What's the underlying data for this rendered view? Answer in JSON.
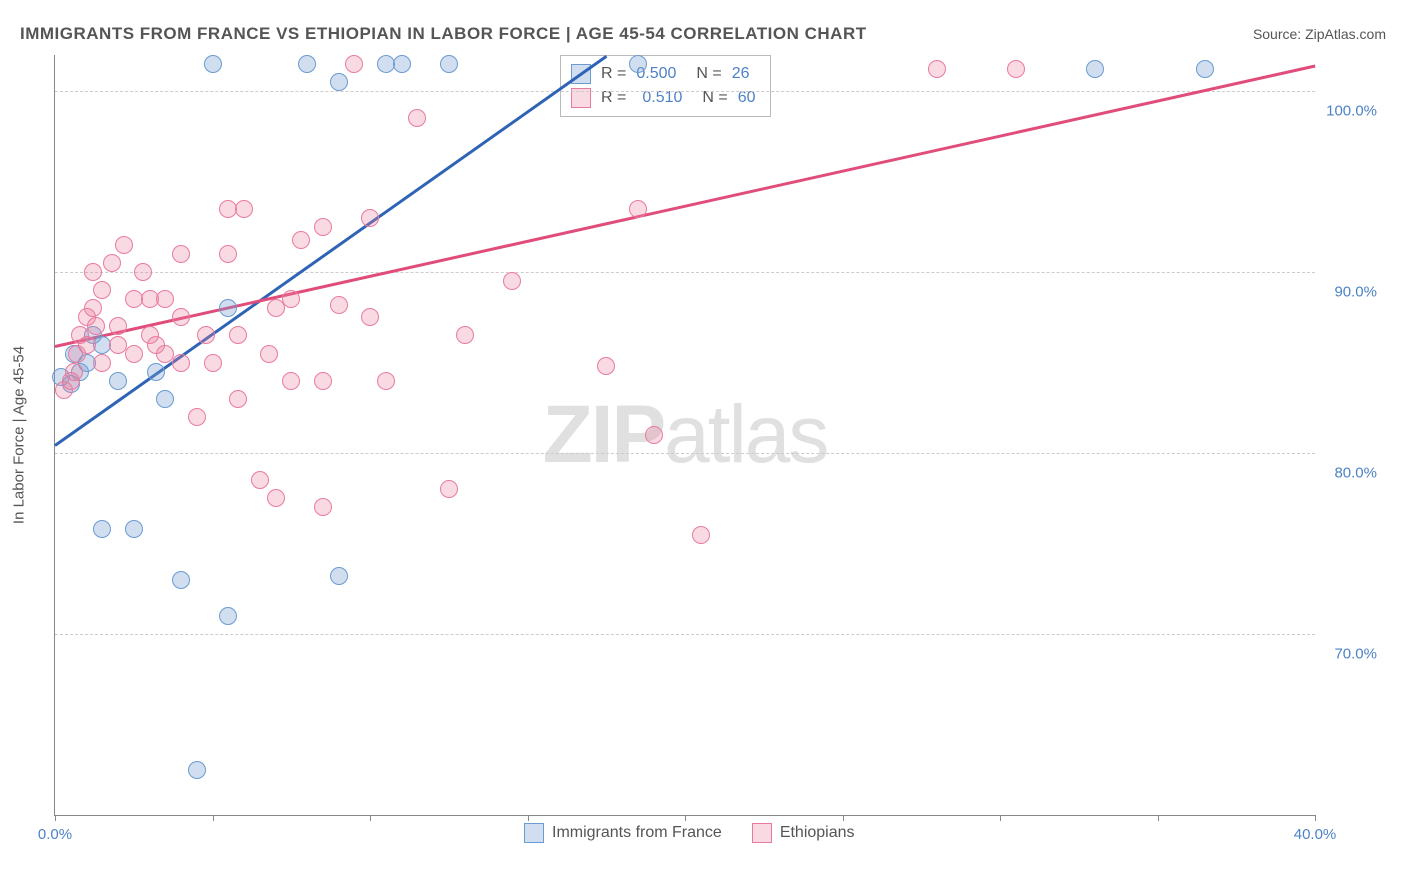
{
  "header": {
    "title": "IMMIGRANTS FROM FRANCE VS ETHIOPIAN IN LABOR FORCE | AGE 45-54 CORRELATION CHART",
    "source": "Source: ZipAtlas.com"
  },
  "chart": {
    "type": "scatter",
    "yaxis_title": "In Labor Force | Age 45-54",
    "watermark": "ZIPatlas",
    "xlim": [
      0,
      40
    ],
    "ylim": [
      60,
      102
    ],
    "xticks": [
      0,
      5,
      10,
      15,
      20,
      25,
      30,
      35,
      40
    ],
    "xtick_labels": {
      "0": "0.0%",
      "40": "40.0%"
    },
    "yticks": [
      70,
      80,
      90,
      100
    ],
    "ytick_labels": {
      "70": "70.0%",
      "80": "80.0%",
      "90": "90.0%",
      "100": "100.0%"
    },
    "grid_color": "#cccccc",
    "axis_color": "#888888",
    "label_color": "#4d82c4",
    "series": [
      {
        "name": "Immigrants from France",
        "fill": "rgba(120,160,210,0.35)",
        "stroke": "#6a9bd1",
        "r_value": "0.500",
        "n_value": "26",
        "trend": {
          "x1": 0,
          "y1": 80.5,
          "x2": 17.5,
          "y2": 102,
          "color": "#2f63b5",
          "width": 3
        },
        "points": [
          [
            0.2,
            84.2
          ],
          [
            0.5,
            83.8
          ],
          [
            0.8,
            84.5
          ],
          [
            1.0,
            85.0
          ],
          [
            1.2,
            86.5
          ],
          [
            1.5,
            86.0
          ],
          [
            2.0,
            84.0
          ],
          [
            1.5,
            75.8
          ],
          [
            2.5,
            75.8
          ],
          [
            3.2,
            84.5
          ],
          [
            3.5,
            83.0
          ],
          [
            4.0,
            73.0
          ],
          [
            4.5,
            62.5
          ],
          [
            5.0,
            101.5
          ],
          [
            5.5,
            71.0
          ],
          [
            5.5,
            88.0
          ],
          [
            8.0,
            101.5
          ],
          [
            9.0,
            100.5
          ],
          [
            9.0,
            73.2
          ],
          [
            10.5,
            101.5
          ],
          [
            11.0,
            101.5
          ],
          [
            12.5,
            101.5
          ],
          [
            18.5,
            101.5
          ],
          [
            33.0,
            101.2
          ],
          [
            36.5,
            101.2
          ],
          [
            0.6,
            85.5
          ]
        ]
      },
      {
        "name": "Ethiopians",
        "fill": "rgba(235,130,160,0.30)",
        "stroke": "#e87ba0",
        "r_value": "0.510",
        "n_value": "60",
        "trend": {
          "x1": 0,
          "y1": 86.0,
          "x2": 40,
          "y2": 101.5,
          "color": "#e14d7b",
          "width": 3
        },
        "points": [
          [
            0.3,
            83.5
          ],
          [
            0.5,
            84.0
          ],
          [
            0.7,
            85.5
          ],
          [
            0.8,
            86.5
          ],
          [
            1.0,
            87.5
          ],
          [
            1.2,
            88.0
          ],
          [
            1.2,
            90.0
          ],
          [
            1.5,
            85.0
          ],
          [
            1.5,
            89.0
          ],
          [
            1.8,
            90.5
          ],
          [
            2.0,
            86.0
          ],
          [
            2.0,
            87.0
          ],
          [
            2.2,
            91.5
          ],
          [
            2.5,
            85.5
          ],
          [
            2.5,
            88.5
          ],
          [
            2.8,
            90.0
          ],
          [
            3.0,
            86.5
          ],
          [
            3.0,
            88.5
          ],
          [
            3.2,
            86.0
          ],
          [
            3.5,
            85.5
          ],
          [
            3.5,
            88.5
          ],
          [
            4.0,
            85.0
          ],
          [
            4.0,
            87.5
          ],
          [
            4.0,
            91.0
          ],
          [
            4.5,
            82.0
          ],
          [
            4.8,
            86.5
          ],
          [
            5.0,
            85.0
          ],
          [
            5.5,
            91.0
          ],
          [
            5.5,
            93.5
          ],
          [
            5.8,
            83.0
          ],
          [
            5.8,
            86.5
          ],
          [
            6.0,
            93.5
          ],
          [
            6.5,
            78.5
          ],
          [
            6.8,
            85.5
          ],
          [
            7.0,
            88.0
          ],
          [
            7.0,
            77.5
          ],
          [
            7.5,
            84.0
          ],
          [
            7.5,
            88.5
          ],
          [
            7.8,
            91.8
          ],
          [
            8.5,
            84.0
          ],
          [
            8.5,
            92.5
          ],
          [
            8.5,
            77.0
          ],
          [
            9.0,
            88.2
          ],
          [
            9.5,
            101.5
          ],
          [
            10.0,
            93.0
          ],
          [
            10.0,
            87.5
          ],
          [
            10.5,
            84.0
          ],
          [
            11.5,
            98.5
          ],
          [
            12.5,
            78.0
          ],
          [
            13.0,
            86.5
          ],
          [
            14.5,
            89.5
          ],
          [
            17.5,
            84.8
          ],
          [
            18.5,
            93.5
          ],
          [
            19.0,
            81.0
          ],
          [
            20.5,
            75.5
          ],
          [
            28.0,
            101.2
          ],
          [
            30.5,
            101.2
          ],
          [
            1.0,
            86.0
          ],
          [
            1.3,
            87.0
          ],
          [
            0.6,
            84.5
          ]
        ]
      }
    ],
    "legend": {
      "series1_label": "Immigrants from France",
      "series2_label": "Ethiopians"
    }
  }
}
